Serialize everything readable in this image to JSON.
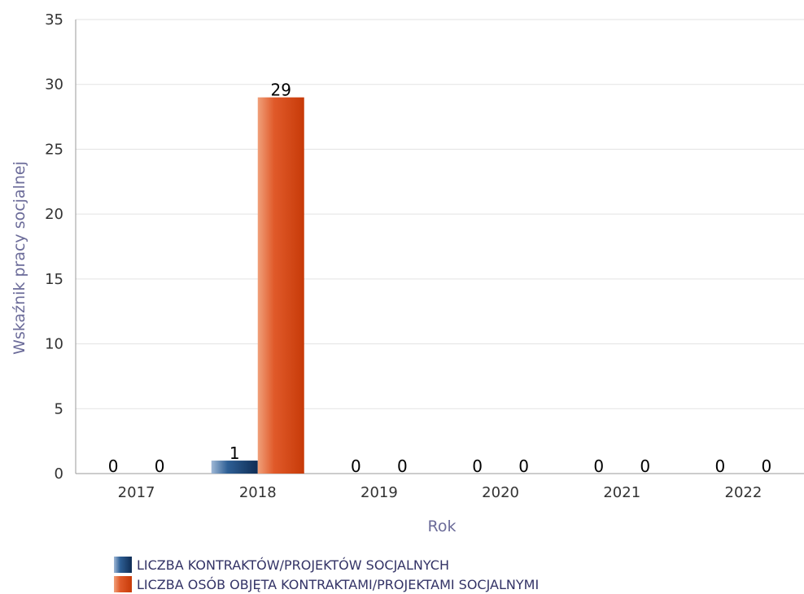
{
  "chart_data": {
    "type": "bar",
    "categories": [
      "2017",
      "2018",
      "2019",
      "2020",
      "2021",
      "2022"
    ],
    "series": [
      {
        "name": "LICZBA KONTRAKTÓW/PROJEKTÓW SOCJALNYCH",
        "values": [
          0,
          1,
          0,
          0,
          0,
          0
        ],
        "color": "#1f4e79"
      },
      {
        "name": "LICZBA OSÓB OBJĘTA KONTRAKTAMI/PROJEKTAMI SOCJALNYMI",
        "values": [
          0,
          29,
          0,
          0,
          0,
          0
        ],
        "color": "#d64a1c"
      }
    ],
    "xlabel": "Rok",
    "ylabel": "Wskaźnik pracy socjalnej",
    "ylim": [
      0,
      35
    ],
    "yticks": [
      0,
      5,
      10,
      15,
      20,
      25,
      30,
      35
    ],
    "grid": true,
    "legend_position": "bottom"
  }
}
